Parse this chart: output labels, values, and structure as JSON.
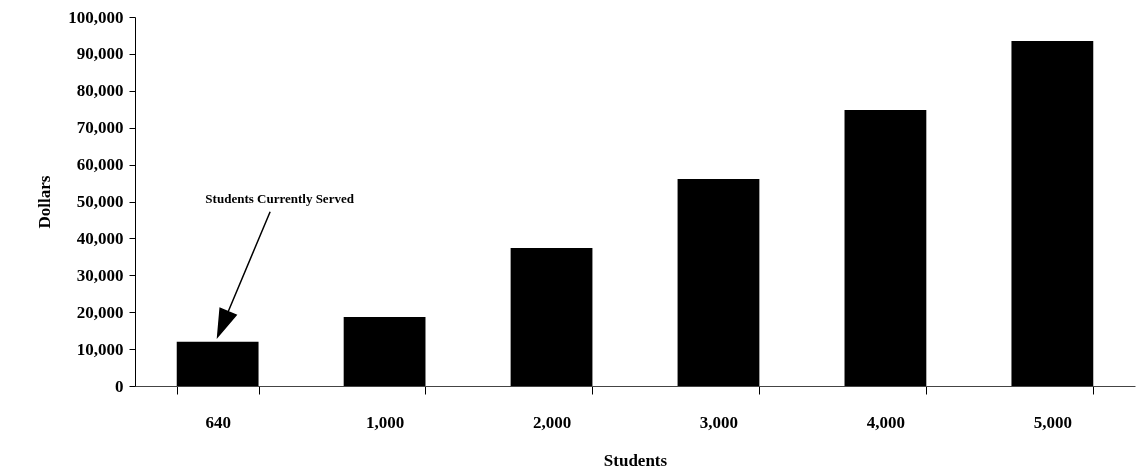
{
  "chart_data": {
    "type": "bar",
    "xlabel": "Students",
    "ylabel": "Dollars",
    "categories": [
      "640",
      "1,000",
      "2,000",
      "3,000",
      "4,000",
      "5,000"
    ],
    "values": [
      12000,
      18700,
      37400,
      56100,
      74800,
      93500
    ],
    "color": "#000000",
    "ylim": [
      0,
      100000
    ],
    "yticks": [
      0,
      {
        "value": 10000,
        "label": "10,000"
      },
      {
        "value": 20000,
        "label": "20,000"
      },
      {
        "value": 30000,
        "label": "30,000"
      },
      {
        "value": 40000,
        "label": "40,000"
      },
      {
        "value": 50000,
        "label": "50,000"
      },
      {
        "value": 60000,
        "label": "60,000"
      },
      {
        "value": 70000,
        "label": "70,000"
      },
      {
        "value": 80000,
        "label": "80,000"
      },
      {
        "value": 90000,
        "label": "90,000"
      },
      {
        "value": 100000,
        "label": "100,000"
      }
    ],
    "grid": false,
    "annotations": [
      "Students Currently Served"
    ]
  }
}
